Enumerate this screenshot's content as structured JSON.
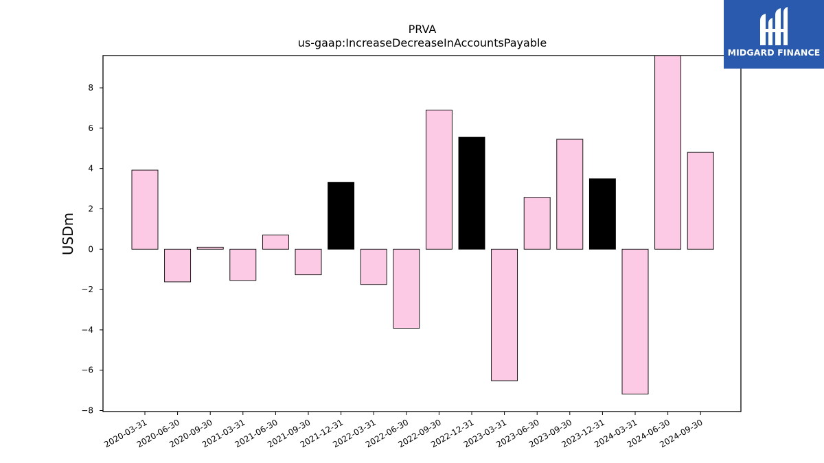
{
  "chart_data": {
    "type": "bar",
    "title": "PRVA",
    "subtitle": "us-gaap:IncreaseDecreaseInAccountsPayable",
    "xlabel": "",
    "ylabel": "USDm",
    "ylim": [
      -8.05,
      9.6
    ],
    "yticks": [
      -8,
      -6,
      -4,
      -2,
      0,
      2,
      4,
      6,
      8
    ],
    "grid": false,
    "categories": [
      "2020-03-31",
      "2020-06-30",
      "2020-09-30",
      "2021-03-31",
      "2021-06-30",
      "2021-09-30",
      "2021-12-31",
      "2022-03-31",
      "2022-06-30",
      "2022-09-30",
      "2022-12-31",
      "2023-03-31",
      "2023-06-30",
      "2023-09-30",
      "2023-12-31",
      "2024-03-31",
      "2024-06-30",
      "2024-09-30"
    ],
    "values": [
      3.92,
      -1.62,
      0.1,
      -1.55,
      0.7,
      -1.27,
      3.32,
      -1.75,
      -3.92,
      6.9,
      5.55,
      -6.52,
      2.57,
      5.45,
      3.49,
      -7.18,
      9.6,
      4.8
    ],
    "highlight": [
      false,
      false,
      false,
      false,
      false,
      false,
      true,
      false,
      false,
      false,
      true,
      false,
      false,
      false,
      true,
      false,
      false,
      false
    ],
    "colors": {
      "bar": "#fccae4",
      "highlight": "#000000",
      "edge": "#000000"
    }
  },
  "logo": {
    "text": "MIDGARD FINANCE",
    "color": "#2a5aad"
  }
}
